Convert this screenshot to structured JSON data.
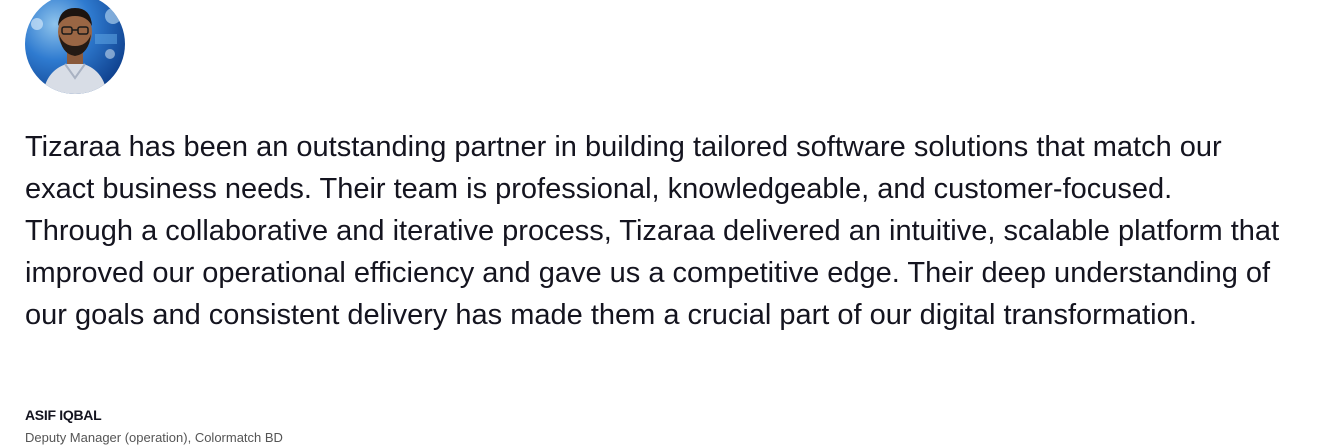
{
  "testimonial": {
    "quote": "Tizaraa has been an outstanding partner in building tailored software solutions that match our exact business needs. Their team is professional, knowledgeable, and customer-focused. Through a collaborative and iterative process, Tizaraa delivered an intuitive, scalable platform that improved our operational efficiency and gave us a competitive edge. Their deep understanding of our goals and consistent delivery has made them a crucial part of our digital transformation.",
    "author_name": "ASIF IQBAL",
    "author_role": "Deputy Manager (operation), Colormatch BD"
  }
}
